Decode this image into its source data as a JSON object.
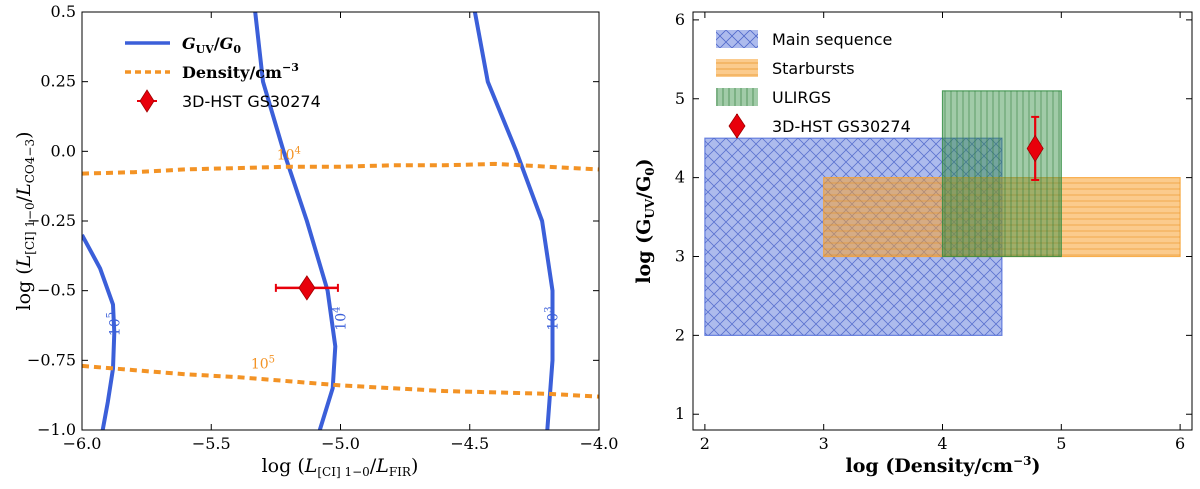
{
  "chart_data": [
    {
      "type": "line",
      "title": "",
      "xlabel": "log (L[CI] 1−0 / LFIR)",
      "ylabel": "log (L[CI] 1−0 / LCO4−3)",
      "xlim": [
        -6.0,
        -4.0
      ],
      "ylim": [
        -1.0,
        0.5
      ],
      "xticks": [
        -6.0,
        -5.5,
        -5.0,
        -4.5,
        -4.0
      ],
      "xtick_labels": [
        "−6.0",
        "−5.5",
        "−5.0",
        "−4.5",
        "−4.0"
      ],
      "yticks": [
        -1.0,
        -0.75,
        -0.5,
        -0.25,
        0.0,
        0.25,
        0.5
      ],
      "ytick_labels": [
        "−1.0",
        "−0.75",
        "−0.5",
        "−0.25",
        "0.0",
        "0.25",
        "0.5"
      ],
      "grid": false,
      "legend_position": "top-left",
      "legend": [
        {
          "label": "GUV/G0",
          "kind": "line",
          "color": "#3b5fd9"
        },
        {
          "label": "Density/cm−3",
          "kind": "dashed",
          "color": "#f39325"
        },
        {
          "label": "3D-HST GS30274",
          "kind": "marker",
          "color": "#e8000b"
        }
      ],
      "series": [
        {
          "group": "guv",
          "label": "10^5",
          "color": "#3b5fd9",
          "x": [
            -6.0,
            -5.93,
            -5.88,
            -5.875,
            -5.88,
            -5.9,
            -5.92
          ],
          "y": [
            -0.3,
            -0.42,
            -0.55,
            -0.65,
            -0.78,
            -0.9,
            -1.0
          ]
        },
        {
          "group": "guv",
          "label": "10^4",
          "color": "#3b5fd9",
          "x": [
            -5.33,
            -5.3,
            -5.22,
            -5.13,
            -5.05,
            -5.02,
            -5.03,
            -5.08
          ],
          "y": [
            0.5,
            0.25,
            0.0,
            -0.25,
            -0.5,
            -0.7,
            -0.85,
            -1.0
          ]
        },
        {
          "group": "guv",
          "label": "10^3",
          "color": "#3b5fd9",
          "x": [
            -4.48,
            -4.43,
            -4.32,
            -4.22,
            -4.18,
            -4.18,
            -4.2
          ],
          "y": [
            0.5,
            0.25,
            0.0,
            -0.25,
            -0.5,
            -0.75,
            -1.0
          ]
        },
        {
          "group": "density",
          "label": "10^4",
          "color": "#f39325",
          "x": [
            -6.0,
            -5.8,
            -5.6,
            -5.4,
            -5.2,
            -5.0,
            -4.8,
            -4.6,
            -4.4,
            -4.2,
            -4.0
          ],
          "y": [
            -0.08,
            -0.075,
            -0.065,
            -0.06,
            -0.055,
            -0.055,
            -0.05,
            -0.05,
            -0.045,
            -0.055,
            -0.065
          ]
        },
        {
          "group": "density",
          "label": "10^5",
          "color": "#f39325",
          "x": [
            -6.0,
            -5.8,
            -5.6,
            -5.4,
            -5.2,
            -5.0,
            -4.8,
            -4.6,
            -4.4,
            -4.2,
            -4.0
          ],
          "y": [
            -0.77,
            -0.785,
            -0.8,
            -0.81,
            -0.825,
            -0.84,
            -0.85,
            -0.86,
            -0.865,
            -0.87,
            -0.88
          ]
        }
      ],
      "contour_labels": [
        {
          "text": "10",
          "sup": "5",
          "x": -5.855,
          "y": -0.62,
          "color": "#3b5fd9",
          "rotate": -90
        },
        {
          "text": "10",
          "sup": "4",
          "x": -4.98,
          "y": -0.6,
          "color": "#3b5fd9",
          "rotate": -90
        },
        {
          "text": "10",
          "sup": "3",
          "x": -4.16,
          "y": -0.6,
          "color": "#3b5fd9",
          "rotate": -90
        },
        {
          "text": "10",
          "sup": "4",
          "x": -5.2,
          "y": -0.03,
          "color": "#f39325",
          "rotate": 0
        },
        {
          "text": "10",
          "sup": "5",
          "x": -5.3,
          "y": -0.78,
          "color": "#f39325",
          "rotate": 0
        }
      ],
      "point": {
        "label": "3D-HST GS30274",
        "x": -5.13,
        "y": -0.49,
        "xerr": 0.12,
        "color": "#e8000b"
      }
    },
    {
      "type": "area",
      "title": "",
      "xlabel": "log (Density/cm−3)",
      "ylabel": "log (GUV/G0)",
      "xlim": [
        1.9,
        6.1
      ],
      "ylim": [
        0.8,
        6.1
      ],
      "xticks": [
        2,
        3,
        4,
        5,
        6
      ],
      "xtick_labels": [
        "2",
        "3",
        "4",
        "5",
        "6"
      ],
      "yticks": [
        1,
        2,
        3,
        4,
        5,
        6
      ],
      "ytick_labels": [
        "1",
        "2",
        "3",
        "4",
        "5",
        "6"
      ],
      "grid": false,
      "legend_position": "top-left",
      "regions": [
        {
          "name": "Main sequence",
          "x": [
            2.0,
            4.5
          ],
          "y": [
            2.0,
            4.5
          ],
          "color": "#4a68d8",
          "hatch": "crosshatch"
        },
        {
          "name": "Starbursts",
          "x": [
            3.0,
            6.0
          ],
          "y": [
            3.0,
            4.0
          ],
          "color": "#f7a12f",
          "hatch": "horizontal"
        },
        {
          "name": "ULIRGS",
          "x": [
            4.0,
            5.0
          ],
          "y": [
            3.0,
            5.1
          ],
          "color": "#2e8b3e",
          "hatch": "vertical"
        }
      ],
      "point": {
        "label": "3D-HST GS30274",
        "x": 4.78,
        "y": 4.37,
        "yerr": 0.4,
        "color": "#e8000b"
      }
    }
  ]
}
